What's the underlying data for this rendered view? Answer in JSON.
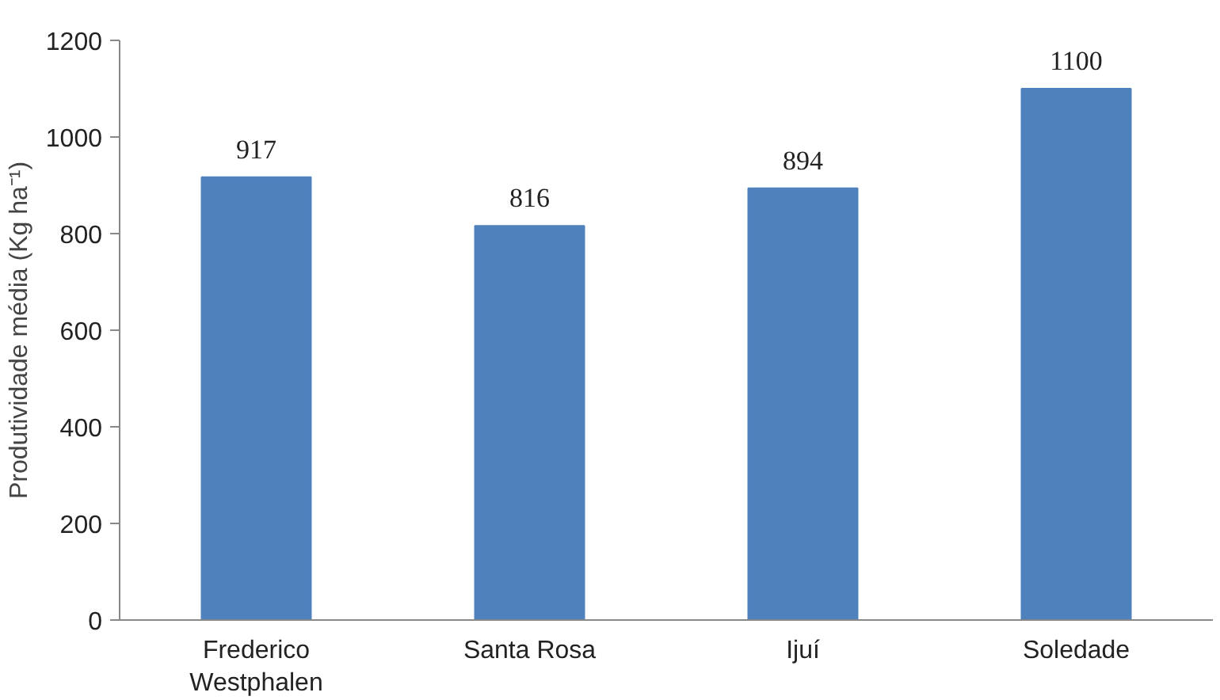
{
  "chart_data": {
    "type": "bar",
    "ylabel": "Produtividade média (Kg ha⁻¹)",
    "categories": [
      "Frederico Westphalen",
      "Santa Rosa",
      "Ijuí",
      "Soledade"
    ],
    "values": [
      917,
      816,
      894,
      1100
    ],
    "color": "#4f81bd",
    "ylim": [
      0,
      1200
    ],
    "yticks": [
      0,
      200,
      400,
      600,
      800,
      1000,
      1200
    ],
    "grid": false,
    "data_labels": true
  }
}
